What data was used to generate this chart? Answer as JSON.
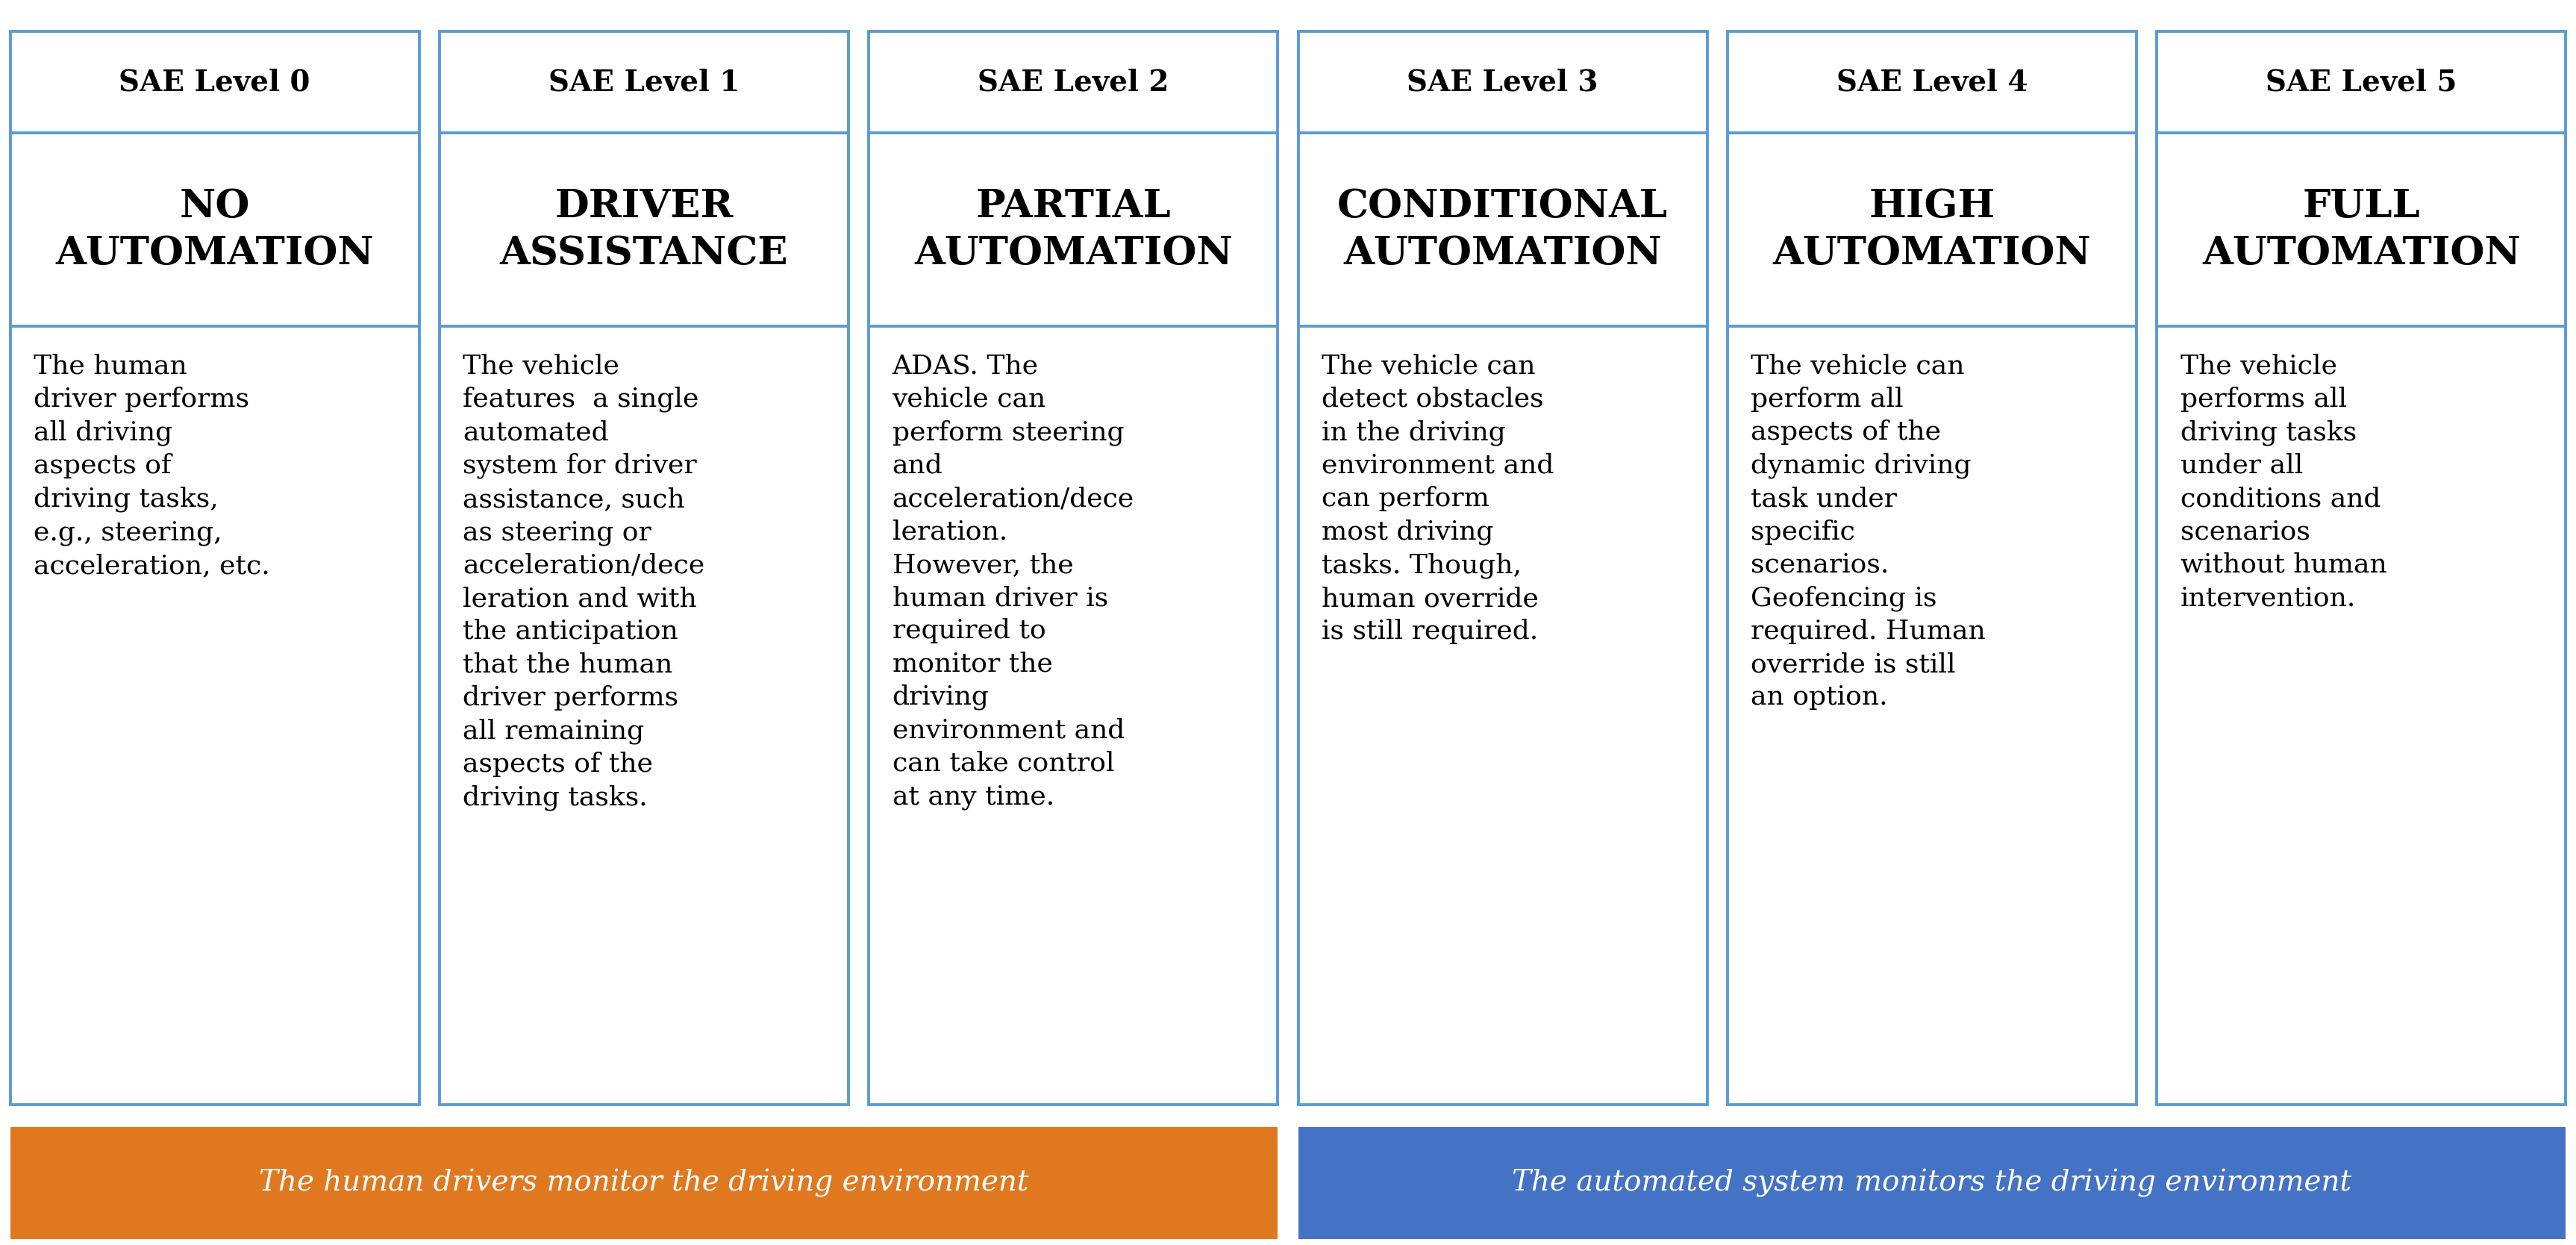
{
  "levels": [
    "SAE Level 0",
    "SAE Level 1",
    "SAE Level 2",
    "SAE Level 3",
    "SAE Level 4",
    "SAE Level 5"
  ],
  "titles": [
    "NO\nAUTOMATION",
    "DRIVER\nASSISTANCE",
    "PARTIAL\nAUTOMATION",
    "CONDITIONAL\nAUTOMATION",
    "HIGH\nAUTOMATION",
    "FULL\nAUTOMATION"
  ],
  "descriptions": [
    "The human\ndriver performs\nall driving\naspects of\ndriving tasks,\ne.g., steering,\nacceleration, etc.",
    "The vehicle\nfeatures  a single\nautomated\nsystem for driver\nassistance, such\nas steering or\nacceleration/dece\nleration and with\nthe anticipation\nthat the human\ndriver performs\nall remaining\naspects of the\ndriving tasks.",
    "ADAS. The\nvehicle can\nperform steering\nand\nacceleration/dece\nleration.\nHowever, the\nhuman driver is\nrequired to\nmonitor the\ndriving\nenvironment and\ncan take control\nat any time.",
    "The vehicle can\ndetect obstacles\nin the driving\nenvironment and\ncan perform\nmost driving\ntasks. Though,\nhuman override\nis still required.",
    "The vehicle can\nperform all\naspects of the\ndynamic driving\ntask under\nspecific\nscenarios.\nGeofencing is\nrequired. Human\noverride is still\nan option.",
    "The vehicle\nperforms all\ndriving tasks\nunder all\nconditions and\nscenarios\nwithout human\nintervention."
  ],
  "footer_left_text": "The human drivers monitor the driving environment",
  "footer_right_text": "The automated system monitors the driving environment",
  "footer_left_color": "#E07820",
  "footer_right_color": "#4472C4",
  "border_color": "#5B9BD5",
  "footer_text_color": "#FFFFFF",
  "n_cols": 6,
  "footer_split": 3,
  "header_fontsize": 28,
  "title_fontsize": 38,
  "desc_fontsize": 26,
  "footer_fontsize": 28
}
